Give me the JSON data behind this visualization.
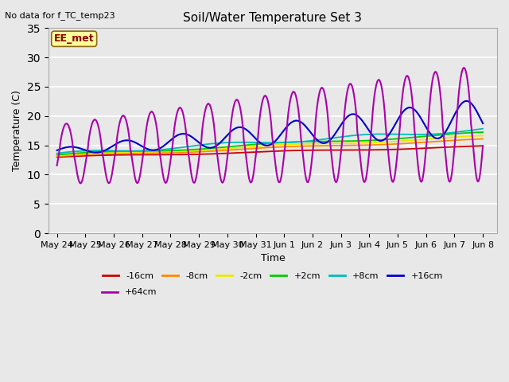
{
  "title": "Soil/Water Temperature Set 3",
  "xlabel": "Time",
  "ylabel": "Temperature (C)",
  "annotation": "No data for f_TC_temp23",
  "box_label": "EE_met",
  "ylim": [
    0,
    35
  ],
  "yticks": [
    0,
    5,
    10,
    15,
    20,
    25,
    30,
    35
  ],
  "fig_bg": "#e8e8e8",
  "plot_bg": "#e8e8e8",
  "series": [
    {
      "label": "-16cm",
      "color": "#cc0000"
    },
    {
      "label": "-8cm",
      "color": "#ff8800"
    },
    {
      "label": "-2cm",
      "color": "#e8e800"
    },
    {
      "label": "+2cm",
      "color": "#00cc00"
    },
    {
      "label": "+8cm",
      "color": "#00bbbb"
    },
    {
      "label": "+16cm",
      "color": "#0000cc"
    },
    {
      "label": "+64cm",
      "color": "#aa00aa"
    }
  ],
  "x_tick_labels": [
    "May 24",
    "May 25",
    "May 26",
    "May 27",
    "May 28",
    "May 29",
    "May 30",
    "May 31",
    "Jun 1",
    "Jun 2",
    "Jun 3",
    "Jun 4",
    "Jun 5",
    "Jun 6",
    "Jun 7",
    "Jun 8"
  ],
  "title_fontsize": 11,
  "axis_fontsize": 9,
  "tick_fontsize": 8
}
